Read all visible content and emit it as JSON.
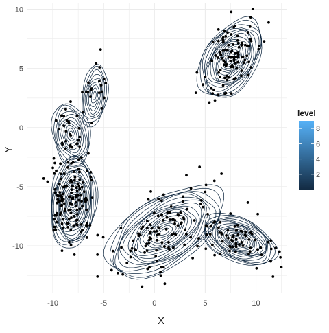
{
  "chart_data": {
    "type": "scatter",
    "title": "",
    "xlabel": "X",
    "ylabel": "Y",
    "xlim": [
      -12.5,
      13
    ],
    "ylim": [
      -14,
      10.5
    ],
    "grid": true,
    "x_ticks": [
      -10,
      -5,
      0,
      5,
      10
    ],
    "y_ticks": [
      -10,
      -5,
      0,
      5,
      10
    ],
    "overlay": "2d-density-contours",
    "contour_color": "#132B43",
    "point_color": "#000000",
    "legend": {
      "title": "level",
      "placement": "right",
      "type": "colorbar",
      "range": [
        0,
        9
      ],
      "ticks": [
        2,
        4,
        6,
        8
      ],
      "color_low": "#132B43",
      "color_high": "#56B1F7"
    },
    "clusters": [
      {
        "center": [
          1,
          -8.8
        ],
        "sd": [
          3.2,
          1.4
        ],
        "angle_deg": 33,
        "n_points": 110,
        "max_level": 8
      },
      {
        "center": [
          8.3,
          -9.5
        ],
        "sd": [
          1.9,
          0.9
        ],
        "angle_deg": -25,
        "n_points": 70,
        "max_level": 8
      },
      {
        "center": [
          -8,
          -6.3
        ],
        "sd": [
          1.1,
          1.9
        ],
        "angle_deg": -5,
        "n_points": 140,
        "max_level": 9
      },
      {
        "center": [
          7.5,
          5.8
        ],
        "sd": [
          2.1,
          1.1
        ],
        "angle_deg": 58,
        "n_points": 100,
        "max_level": 8
      },
      {
        "center": [
          -8.2,
          -0.6
        ],
        "sd": [
          0.9,
          1.3
        ],
        "angle_deg": 10,
        "n_points": 25,
        "max_level": 5
      },
      {
        "center": [
          -5.9,
          2.7
        ],
        "sd": [
          0.6,
          1.3
        ],
        "angle_deg": -8,
        "n_points": 12,
        "max_level": 4
      }
    ],
    "outliers": [
      [
        -5.3,
        6.6
      ],
      [
        -5.4,
        5.1
      ],
      [
        -6.2,
        3.3
      ],
      [
        -6.7,
        3.0
      ],
      [
        -7.1,
        3.0
      ],
      [
        -6.5,
        3.8
      ],
      [
        -6.3,
        2.6
      ],
      [
        -7.0,
        1.3
      ],
      [
        -7.6,
        1.0
      ],
      [
        -10.9,
        -4.3
      ],
      [
        -10.0,
        -3.4
      ],
      [
        -9.9,
        -2.6
      ],
      [
        -9.8,
        -3.0
      ],
      [
        -5.6,
        -12.6
      ],
      [
        -3.6,
        -12.3
      ],
      [
        -3.3,
        -8.5
      ],
      [
        0.6,
        -12.2
      ],
      [
        6.6,
        -3.9
      ],
      [
        5.9,
        -4.5
      ],
      [
        10.8,
        7.3
      ],
      [
        6.3,
        8.3
      ],
      [
        5.0,
        4.3
      ],
      [
        10.3,
        6.9
      ]
    ]
  }
}
